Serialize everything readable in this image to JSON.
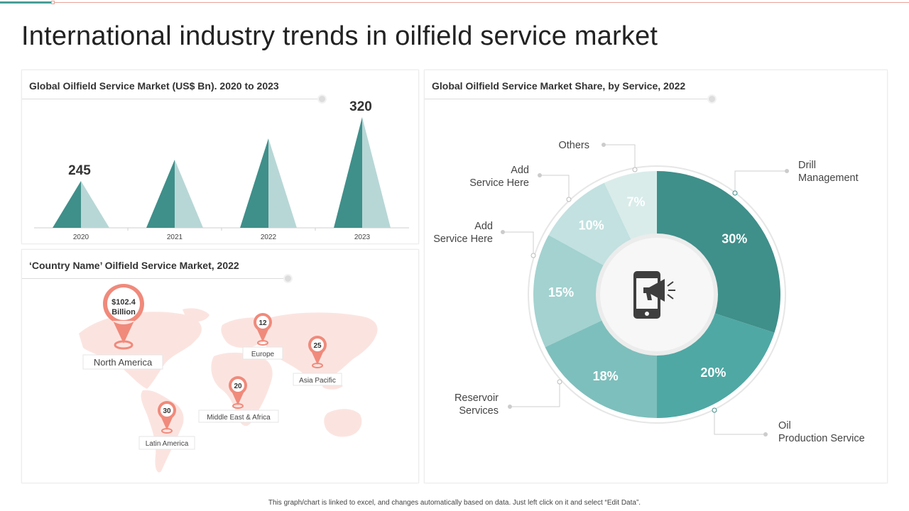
{
  "title": "International industry trends in oilfield service market",
  "footer": "This graph/chart is linked to excel, and changes automatically based on data. Just left click on it and select “Edit Data”.",
  "colors": {
    "dark_teal": "#3f8f8a",
    "light_teal": "#b7d7d6",
    "salmon": "#f08a7b",
    "map": "#fbe4e0",
    "accent": "#4a9e97"
  },
  "panels": {
    "market_size": {
      "title": "Global Oilfield Service Market (US$ Bn). 2020 to 2023"
    },
    "country": {
      "title": "‘Country Name’ Oilfield Service Market, 2022"
    },
    "share": {
      "title": "Global Oilfield Service Market Share, by Service, 2022"
    }
  },
  "chart_data": [
    {
      "type": "bar",
      "title": "Global Oilfield Service Market (US$ Bn). 2020 to 2023",
      "categories": [
        "2020",
        "2021",
        "2022",
        "2023"
      ],
      "values": [
        245,
        270,
        295,
        320
      ],
      "data_labels": {
        "2020": "245",
        "2023": "320"
      },
      "ylim": [
        190,
        330
      ],
      "xlabel": "",
      "ylabel": ""
    },
    {
      "type": "pie",
      "title": "Global Oilfield Service Market Share, by Service, 2022",
      "slices": [
        {
          "label": "Drill\nManagement",
          "value": 30,
          "text": "30%",
          "color": "#3f8f8a"
        },
        {
          "label": "Oil\nProduction Service",
          "value": 20,
          "text": "20%",
          "color": "#4fa8a4"
        },
        {
          "label": "Reservoir\nServices",
          "value": 18,
          "text": "18%",
          "color": "#7dbfbc"
        },
        {
          "label": "Add\nService Here",
          "value": 15,
          "text": "15%",
          "color": "#a3d2d0"
        },
        {
          "label": "Add\nService Here",
          "value": 10,
          "text": "10%",
          "color": "#c2e1e0"
        },
        {
          "label": "Others",
          "value": 7,
          "text": "7%",
          "color": "#d9ecea"
        }
      ]
    }
  ],
  "map": {
    "pins": [
      {
        "region": "North America",
        "value": "$102.4\nBillion",
        "big": true
      },
      {
        "region": "Europe",
        "value": "12",
        "big": false
      },
      {
        "region": "Asia Pacific",
        "value": "25",
        "big": false
      },
      {
        "region": "Middle East & Africa",
        "value": "20",
        "big": false
      },
      {
        "region": "Latin America",
        "value": "30",
        "big": false
      }
    ]
  },
  "center_icon": "phone-megaphone-icon"
}
